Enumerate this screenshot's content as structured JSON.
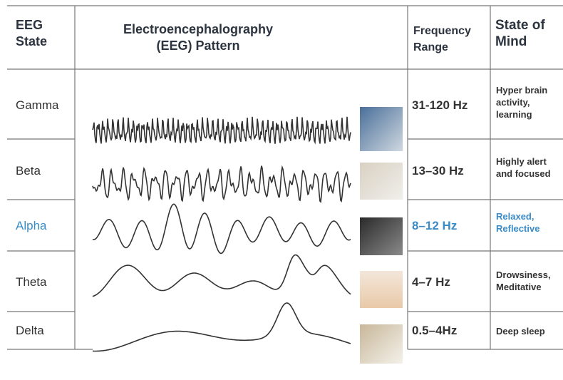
{
  "header": {
    "state": [
      "EEG",
      "State"
    ],
    "pattern": [
      "Electroencephalography",
      "(EEG) Pattern"
    ],
    "frequency": [
      "Frequency",
      "Range"
    ],
    "mind": [
      "State of",
      "Mind"
    ]
  },
  "rows": [
    {
      "state": "Gamma",
      "frequency": "31-120 Hz",
      "mind": [
        "Hyper brain",
        "activity,",
        "learning"
      ]
    },
    {
      "state": "Beta",
      "frequency": "13–30 Hz",
      "mind": [
        "Highly alert",
        "and focused"
      ]
    },
    {
      "state": "Alpha",
      "frequency": "8–12 Hz",
      "mind": [
        "Relaxed,",
        "Reflective"
      ]
    },
    {
      "state": "Theta",
      "frequency": "4–7 Hz",
      "mind": [
        "Drowsiness,",
        "Meditative"
      ]
    },
    {
      "state": "Delta",
      "frequency": "0.5–4Hz",
      "mind": [
        "Deep sleep"
      ]
    }
  ]
}
